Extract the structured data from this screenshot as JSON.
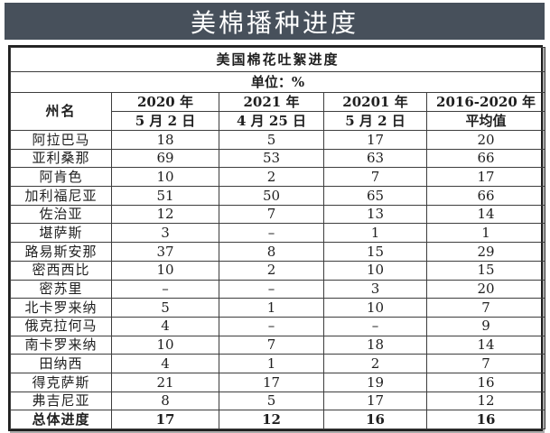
{
  "banner": {
    "title": "美棉播种进度",
    "bg_color": "#47505b",
    "text_color": "#ffffff"
  },
  "table": {
    "title": "美国棉花吐絮进度",
    "unit_label": "单位：%",
    "col_header_state": "州名",
    "col_headers": [
      {
        "year": "2020 年",
        "date": "5 月 2 日"
      },
      {
        "year": "2021 年",
        "date": "4 月 25 日"
      },
      {
        "year": "20201 年",
        "date": "5 月 2 日"
      },
      {
        "year": "2016-2020 年",
        "date": "平均值"
      }
    ],
    "rows": [
      {
        "state": "阿拉巴马",
        "values": [
          "18",
          "5",
          "17",
          "20"
        ],
        "emphasis": false
      },
      {
        "state": "亚利桑那",
        "values": [
          "69",
          "53",
          "63",
          "66"
        ],
        "emphasis": false
      },
      {
        "state": "阿肯色",
        "values": [
          "10",
          "2",
          "7",
          "17"
        ],
        "emphasis": false
      },
      {
        "state": "加利福尼亚",
        "values": [
          "51",
          "50",
          "65",
          "66"
        ],
        "emphasis": false
      },
      {
        "state": "佐治亚",
        "values": [
          "12",
          "7",
          "13",
          "14"
        ],
        "emphasis": false
      },
      {
        "state": "堪萨斯",
        "values": [
          "3",
          "–",
          "1",
          "1"
        ],
        "emphasis": false
      },
      {
        "state": "路易斯安那",
        "values": [
          "37",
          "8",
          "15",
          "29"
        ],
        "emphasis": false
      },
      {
        "state": "密西西比",
        "values": [
          "10",
          "2",
          "10",
          "15"
        ],
        "emphasis": false
      },
      {
        "state": "密苏里",
        "values": [
          "–",
          "–",
          "3",
          "20"
        ],
        "emphasis": false
      },
      {
        "state": "北卡罗来纳",
        "values": [
          "5",
          "1",
          "10",
          "7"
        ],
        "emphasis": false
      },
      {
        "state": "俄克拉何马",
        "values": [
          "4",
          "–",
          "–",
          "9"
        ],
        "emphasis": false
      },
      {
        "state": "南卡罗来纳",
        "values": [
          "10",
          "7",
          "18",
          "14"
        ],
        "emphasis": false
      },
      {
        "state": "田纳西",
        "values": [
          "4",
          "1",
          "2",
          "7"
        ],
        "emphasis": false
      },
      {
        "state": "得克萨斯",
        "values": [
          "21",
          "17",
          "19",
          "16"
        ],
        "emphasis": false
      },
      {
        "state": "弗吉尼亚",
        "values": [
          "8",
          "5",
          "17",
          "12"
        ],
        "emphasis": false
      },
      {
        "state": "总体进度",
        "values": [
          "17",
          "12",
          "16",
          "16"
        ],
        "emphasis": true
      }
    ]
  }
}
